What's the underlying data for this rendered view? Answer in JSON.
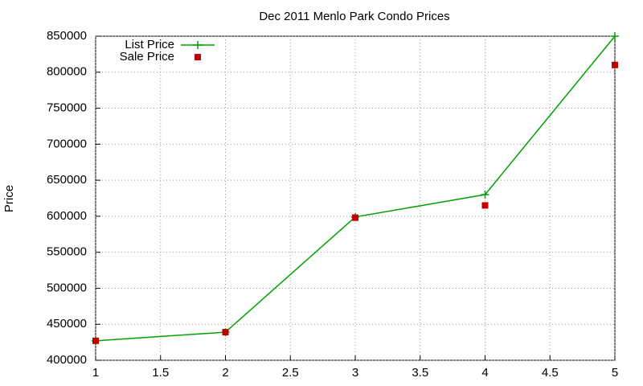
{
  "chart_data": {
    "type": "line",
    "title": "Dec 2011 Menlo Park Condo Prices",
    "y_label": "Price",
    "x": [
      1,
      2,
      3,
      4,
      5
    ],
    "series": [
      {
        "name": "List Price",
        "color": "#00a000",
        "style": "linespoints",
        "values": [
          427000,
          439000,
          599000,
          630000,
          850000
        ]
      },
      {
        "name": "Sale Price",
        "color": "#c00000",
        "style": "points",
        "values": [
          427000,
          439000,
          598000,
          615000,
          810000
        ]
      }
    ],
    "xlim": [
      1,
      5
    ],
    "xticks": [
      1,
      1.5,
      2,
      2.5,
      3,
      3.5,
      4,
      4.5,
      5
    ],
    "ylim": [
      400000,
      850000
    ],
    "yticks": [
      400000,
      450000,
      500000,
      550000,
      600000,
      650000,
      700000,
      750000,
      800000,
      850000
    ],
    "grid": true,
    "legend": "top-left"
  }
}
